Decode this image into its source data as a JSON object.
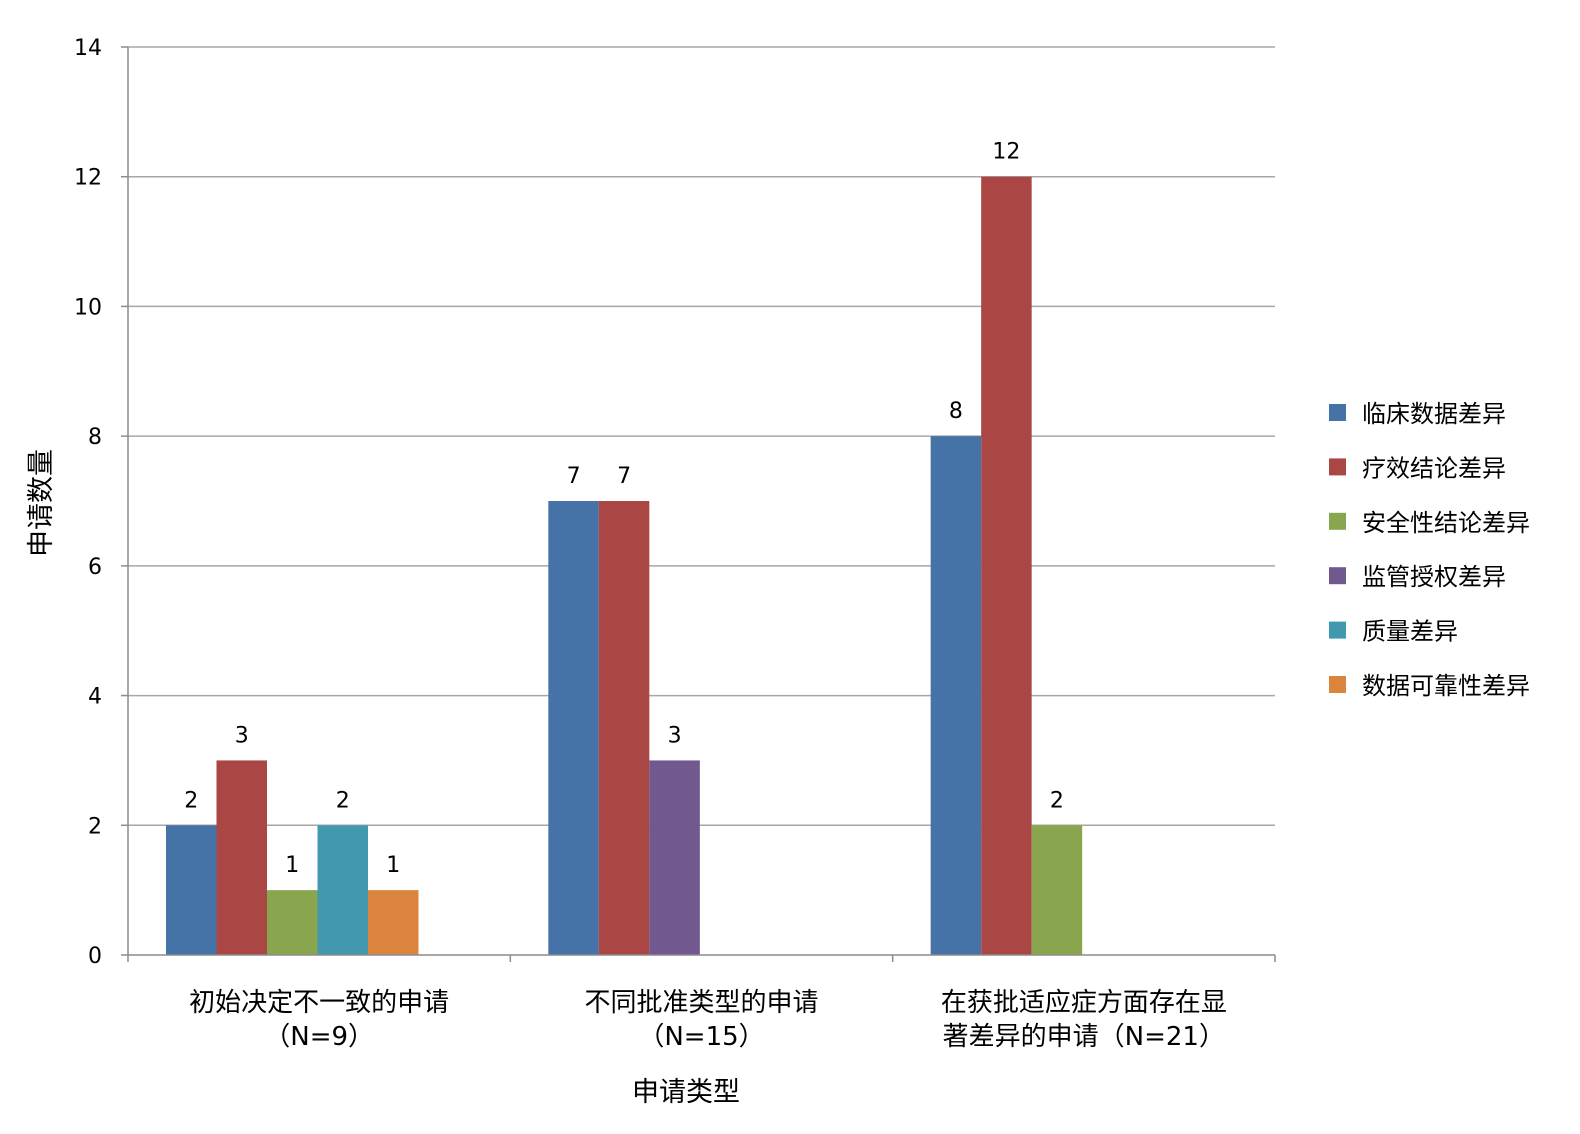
{
  "chart_data": {
    "type": "bar",
    "title": "",
    "xlabel": "申请类型",
    "ylabel": "申请数量",
    "ylim": [
      0,
      14
    ],
    "yticks": [
      "0",
      "2",
      "4",
      "6",
      "8",
      "10",
      "12",
      "14"
    ],
    "grid": true,
    "legend_position": "right",
    "categories": [
      {
        "line1": "初始决定不一致的申请",
        "line2": "（N=9）"
      },
      {
        "line1": "不同批准类型的申请",
        "line2": "（N=15）"
      },
      {
        "line1": "在获批适应症方面存在显",
        "line2": "著差异的申请（N=21）"
      }
    ],
    "series": [
      {
        "name": "临床数据差异",
        "color": "#4572A7",
        "values": [
          2,
          7,
          8
        ]
      },
      {
        "name": "疗效结论差异",
        "color": "#AA4643",
        "values": [
          3,
          7,
          12
        ]
      },
      {
        "name": "安全性结论差异",
        "color": "#89A54E",
        "values": [
          1,
          null,
          2
        ]
      },
      {
        "name": "监管授权差异",
        "color": "#71588F",
        "values": [
          null,
          3,
          null
        ]
      },
      {
        "name": "质量差异",
        "color": "#4198AF",
        "values": [
          2,
          null,
          null
        ]
      },
      {
        "name": "数据可靠性差异",
        "color": "#DB843D",
        "values": [
          1,
          null,
          null
        ]
      }
    ]
  }
}
